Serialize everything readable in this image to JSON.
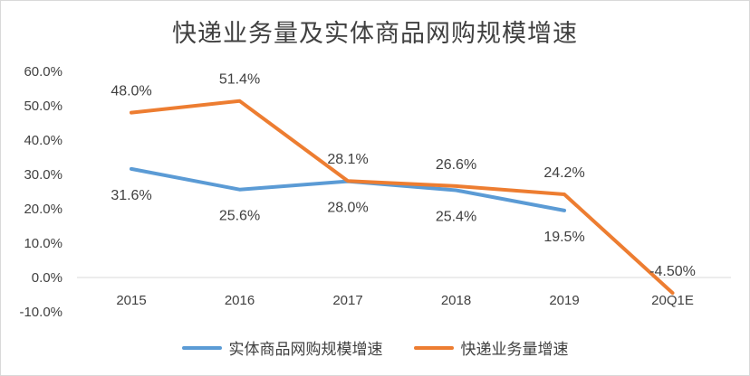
{
  "chart_data": {
    "type": "line",
    "title": "快递业务量及实体商品网购规模增速",
    "categories": [
      "2015",
      "2016",
      "2017",
      "2018",
      "2019",
      "20Q1E"
    ],
    "y_ticks": [
      "60.0%",
      "50.0%",
      "40.0%",
      "30.0%",
      "20.0%",
      "10.0%",
      "0.0%",
      "-10.0%"
    ],
    "ylim": [
      -10,
      60
    ],
    "series": [
      {
        "name": "实体商品网购规模增速",
        "color": "#5b9bd5",
        "values": [
          31.6,
          25.6,
          28.0,
          25.4,
          19.5,
          null
        ],
        "labels": [
          "31.6%",
          "25.6%",
          "28.0%",
          "25.4%",
          "19.5%",
          ""
        ],
        "label_side": "below"
      },
      {
        "name": "快递业务量增速",
        "color": "#ed7d31",
        "values": [
          48.0,
          51.4,
          28.1,
          26.6,
          24.2,
          -4.5
        ],
        "labels": [
          "48.0%",
          "51.4%",
          "28.1%",
          "26.6%",
          "24.2%",
          "-4.50%"
        ],
        "label_side": "above"
      }
    ],
    "legend_position": "bottom"
  }
}
